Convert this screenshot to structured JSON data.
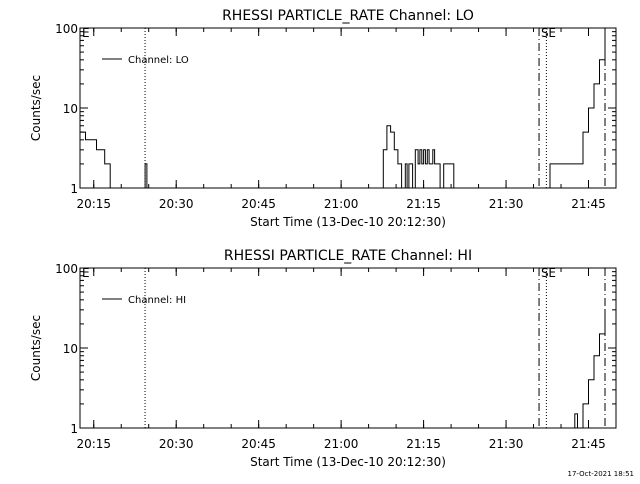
{
  "chart_data": [
    {
      "type": "line",
      "title": "RHESSI PARTICLE_RATE Channel: LO",
      "xlabel": "Start Time (13-Dec-10 20:12:30)",
      "ylabel": "Counts/sec",
      "yscale": "log",
      "xlim": [
        "20:12:30",
        "21:50:00"
      ],
      "ylim": [
        1,
        100
      ],
      "x_ticks": [
        "20:15",
        "20:30",
        "20:45",
        "21:00",
        "21:15",
        "21:30",
        "21:45"
      ],
      "y_ticks": [
        "1",
        "10",
        "100"
      ],
      "legend": {
        "label": "Channel: LO",
        "placement": "top-left"
      },
      "markers": [
        {
          "label": "E",
          "time": "20:12:30",
          "style": "none"
        },
        {
          "label": "",
          "time": "20:24:20",
          "style": "dotted"
        },
        {
          "label": "S",
          "time": "21:36:00",
          "style": "dash-dot"
        },
        {
          "label": "E",
          "time": "21:37:20",
          "style": "dotted"
        },
        {
          "label": "",
          "time": "21:48:00",
          "style": "dash-dot"
        }
      ],
      "series": [
        {
          "name": "Channel: LO",
          "x": [
            "20:12:30",
            "20:13:00",
            "20:13:30",
            "20:14:00",
            "20:15:00",
            "20:15:30",
            "20:16:30",
            "20:17:00",
            "20:18:00",
            "20:24:00",
            "20:24:20",
            "20:24:40",
            "21:07:00",
            "21:07:40",
            "21:08:20",
            "21:09:00",
            "21:09:40",
            "21:10:20",
            "21:10:40",
            "21:11:00",
            "21:11:20",
            "21:11:40",
            "21:12:00",
            "21:12:20",
            "21:12:40",
            "21:13:00",
            "21:13:30",
            "21:14:00",
            "21:14:20",
            "21:14:40",
            "21:15:00",
            "21:15:20",
            "21:15:40",
            "21:16:00",
            "21:16:20",
            "21:16:40",
            "21:17:00",
            "21:17:20",
            "21:17:40",
            "21:18:00",
            "21:18:20",
            "21:18:40",
            "21:19:00",
            "21:19:30",
            "21:20:00",
            "21:20:30",
            "21:21:00",
            "21:21:30",
            "21:37:00",
            "21:38:00",
            "21:40:00",
            "21:42:00",
            "21:43:00",
            "21:44:00",
            "21:45:00",
            "21:46:00",
            "21:47:00",
            "21:48:00"
          ],
          "y": [
            5,
            5,
            4,
            4,
            4,
            3,
            3,
            2,
            1,
            1,
            2,
            1,
            1,
            3,
            6,
            5,
            3,
            2,
            2,
            1,
            1,
            2,
            1,
            2,
            2,
            1,
            3,
            2,
            3,
            2,
            3,
            2,
            3,
            2,
            2,
            3,
            2,
            2,
            2,
            1,
            1,
            2,
            2,
            2,
            2,
            1,
            1,
            1,
            1,
            2,
            2,
            2,
            2,
            5,
            10,
            20,
            40,
            80
          ]
        }
      ]
    },
    {
      "type": "line",
      "title": "RHESSI PARTICLE_RATE Channel: HI",
      "xlabel": "Start Time (13-Dec-10 20:12:30)",
      "ylabel": "Counts/sec",
      "yscale": "log",
      "xlim": [
        "20:12:30",
        "21:50:00"
      ],
      "ylim": [
        1,
        100
      ],
      "x_ticks": [
        "20:15",
        "20:30",
        "20:45",
        "21:00",
        "21:15",
        "21:30",
        "21:45"
      ],
      "y_ticks": [
        "1",
        "10",
        "100"
      ],
      "legend": {
        "label": "Channel: HI",
        "placement": "top-left"
      },
      "markers": [
        {
          "label": "E",
          "time": "20:12:30",
          "style": "none"
        },
        {
          "label": "",
          "time": "20:24:20",
          "style": "dotted"
        },
        {
          "label": "S",
          "time": "21:36:00",
          "style": "dash-dot"
        },
        {
          "label": "E",
          "time": "21:37:20",
          "style": "dotted"
        },
        {
          "label": "",
          "time": "21:48:00",
          "style": "dash-dot"
        }
      ],
      "series": [
        {
          "name": "Channel: HI",
          "x": [
            "21:42:00",
            "21:42:30",
            "21:43:00",
            "21:44:00",
            "21:45:00",
            "21:46:00",
            "21:47:00",
            "21:48:00"
          ],
          "y": [
            1,
            1.5,
            1,
            2,
            4,
            8,
            15,
            30
          ]
        }
      ]
    }
  ],
  "footer": {
    "timestamp": "17-Oct-2021 18:51"
  }
}
